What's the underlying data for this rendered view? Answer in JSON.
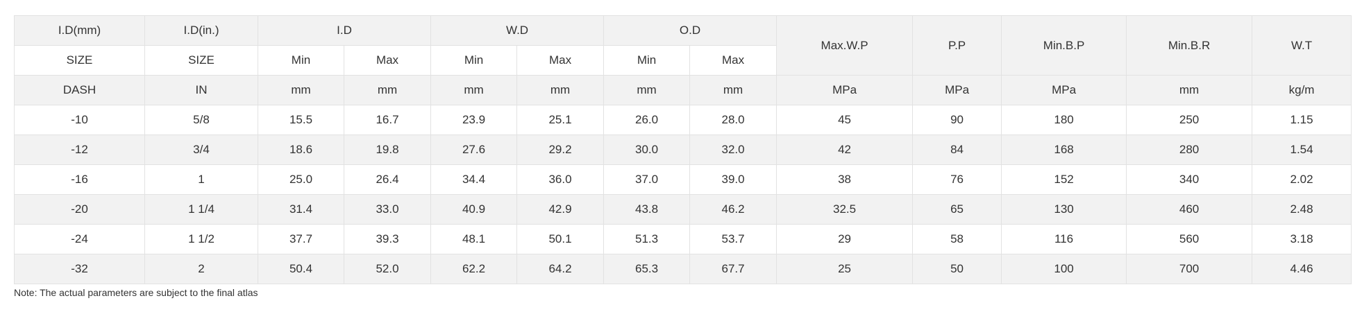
{
  "header": {
    "row1": {
      "id_mm": "I.D(mm)",
      "id_in": "I.D(in.)",
      "id": "I.D",
      "wd": "W.D",
      "od": "O.D",
      "max_wp": "Max.W.P",
      "pp": "P.P",
      "min_bp": "Min.B.P",
      "min_br": "Min.B.R",
      "wt": "W.T"
    },
    "row2": {
      "size_mm": "SIZE",
      "size_in": "SIZE",
      "id_min": "Min",
      "id_max": "Max",
      "wd_min": "Min",
      "wd_max": "Max",
      "od_min": "Min",
      "od_max": "Max"
    },
    "units": [
      "DASH",
      "IN",
      "mm",
      "mm",
      "mm",
      "mm",
      "mm",
      "mm",
      "MPa",
      "MPa",
      "MPa",
      "mm",
      "kg/m"
    ]
  },
  "rows": [
    [
      "-10",
      "5/8",
      "15.5",
      "16.7",
      "23.9",
      "25.1",
      "26.0",
      "28.0",
      "45",
      "90",
      "180",
      "250",
      "1.15"
    ],
    [
      "-12",
      "3/4",
      "18.6",
      "19.8",
      "27.6",
      "29.2",
      "30.0",
      "32.0",
      "42",
      "84",
      "168",
      "280",
      "1.54"
    ],
    [
      "-16",
      "1",
      "25.0",
      "26.4",
      "34.4",
      "36.0",
      "37.0",
      "39.0",
      "38",
      "76",
      "152",
      "340",
      "2.02"
    ],
    [
      "-20",
      "1 1/4",
      "31.4",
      "33.0",
      "40.9",
      "42.9",
      "43.8",
      "46.2",
      "32.5",
      "65",
      "130",
      "460",
      "2.48"
    ],
    [
      "-24",
      "1 1/2",
      "37.7",
      "39.3",
      "48.1",
      "50.1",
      "51.3",
      "53.7",
      "29",
      "58",
      "116",
      "560",
      "3.18"
    ],
    [
      "-32",
      "2",
      "50.4",
      "52.0",
      "62.2",
      "64.2",
      "65.3",
      "67.7",
      "25",
      "50",
      "100",
      "700",
      "4.46"
    ]
  ],
  "note": "Note: The actual parameters are subject to the final atlas",
  "colors": {
    "shade": "#f2f2f2",
    "border": "#e2e2e2",
    "text": "#333333"
  }
}
